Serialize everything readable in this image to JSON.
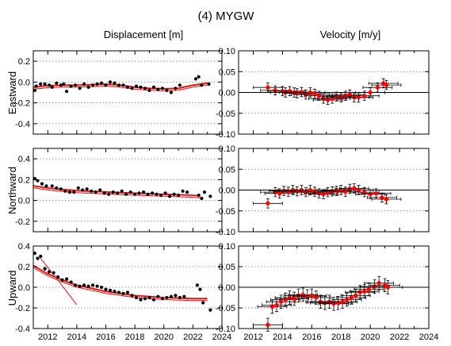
{
  "page_title": "(4) MYGW",
  "column_titles": {
    "displacement": "Displacement [m]",
    "velocity": "Velocity [m/y]"
  },
  "row_labels": {
    "east": "Eastward",
    "north": "Northward",
    "up": "Upward"
  },
  "colors": {
    "data_points": "#000000",
    "model": "#ff0000",
    "velocity_points": "#ff0000",
    "grid": "#777777"
  },
  "chart_data": [
    {
      "id": "disp-east",
      "type": "scatter",
      "title": "",
      "xlabel": "",
      "ylabel": "Eastward",
      "xlim": [
        2011,
        2024
      ],
      "ylim": [
        -0.5,
        0.3
      ],
      "xticks": [],
      "yticks": [
        0.2,
        0.0,
        -0.2,
        -0.4
      ],
      "grid_y": [
        0.2,
        0.0,
        -0.2,
        -0.4
      ],
      "points": [
        [
          2011.1,
          -0.08
        ],
        [
          2011.2,
          -0.04
        ],
        [
          2011.5,
          -0.02
        ],
        [
          2011.8,
          -0.02
        ],
        [
          2012.1,
          -0.03
        ],
        [
          2012.3,
          -0.05
        ],
        [
          2012.6,
          -0.01
        ],
        [
          2012.9,
          -0.03
        ],
        [
          2013.1,
          -0.02
        ],
        [
          2013.3,
          -0.09
        ],
        [
          2013.6,
          -0.04
        ],
        [
          2013.9,
          -0.03
        ],
        [
          2014.2,
          -0.06
        ],
        [
          2014.5,
          -0.02
        ],
        [
          2014.8,
          -0.05
        ],
        [
          2015.1,
          -0.03
        ],
        [
          2015.4,
          -0.02
        ],
        [
          2015.7,
          -0.01
        ],
        [
          2016.0,
          -0.03
        ],
        [
          2016.3,
          0.0
        ],
        [
          2016.6,
          -0.01
        ],
        [
          2016.9,
          -0.03
        ],
        [
          2017.2,
          -0.03
        ],
        [
          2017.5,
          -0.05
        ],
        [
          2017.8,
          -0.06
        ],
        [
          2018.1,
          -0.04
        ],
        [
          2018.4,
          -0.05
        ],
        [
          2018.7,
          -0.06
        ],
        [
          2019.0,
          -0.08
        ],
        [
          2019.3,
          -0.05
        ],
        [
          2019.6,
          -0.07
        ],
        [
          2019.9,
          -0.06
        ],
        [
          2020.2,
          -0.08
        ],
        [
          2020.5,
          -0.1
        ],
        [
          2020.8,
          -0.06
        ],
        [
          2021.1,
          -0.03
        ],
        [
          2022.2,
          0.03
        ],
        [
          2022.4,
          0.05
        ],
        [
          2022.6,
          -0.03
        ],
        [
          2023.1,
          -0.02
        ]
      ],
      "model": [
        [
          2011.0,
          -0.05
        ],
        [
          2012.0,
          -0.035
        ],
        [
          2013.0,
          -0.03
        ],
        [
          2014.0,
          -0.03
        ],
        [
          2015.0,
          -0.025
        ],
        [
          2016.0,
          -0.02
        ],
        [
          2017.0,
          -0.03
        ],
        [
          2018.0,
          -0.05
        ],
        [
          2019.0,
          -0.06
        ],
        [
          2020.0,
          -0.065
        ],
        [
          2021.0,
          -0.06
        ],
        [
          2022.0,
          -0.03
        ],
        [
          2023.0,
          -0.01
        ]
      ],
      "error_bars": false
    },
    {
      "id": "vel-east",
      "type": "scatter",
      "title": "",
      "xlabel": "",
      "ylabel": "",
      "xlim": [
        2011,
        2024
      ],
      "ylim": [
        -0.1,
        0.1
      ],
      "xticks": [],
      "yticks": [
        0.1,
        0.05,
        0.0,
        -0.05,
        -0.1
      ],
      "ytick_labels": [
        "0.10",
        "0.05",
        "0.00",
        "-0.05",
        "-0.10"
      ],
      "grid_y": [
        0.05,
        -0.05
      ],
      "zero_line": true,
      "points": [
        [
          2013.0,
          0.012
        ],
        [
          2013.5,
          0.005
        ],
        [
          2014.0,
          0.003
        ],
        [
          2014.2,
          0.0
        ],
        [
          2014.5,
          0.003
        ],
        [
          2014.8,
          0.0
        ],
        [
          2015.0,
          -0.002
        ],
        [
          2015.3,
          0.001
        ],
        [
          2015.6,
          -0.005
        ],
        [
          2015.9,
          0.0
        ],
        [
          2016.2,
          -0.003
        ],
        [
          2016.5,
          -0.008
        ],
        [
          2016.8,
          -0.015
        ],
        [
          2017.1,
          -0.018
        ],
        [
          2017.4,
          -0.015
        ],
        [
          2017.7,
          -0.01
        ],
        [
          2018.0,
          -0.012
        ],
        [
          2018.3,
          -0.008
        ],
        [
          2018.6,
          -0.005
        ],
        [
          2018.9,
          -0.012
        ],
        [
          2019.2,
          -0.012
        ],
        [
          2019.6,
          -0.008
        ],
        [
          2020.0,
          0.0
        ],
        [
          2020.5,
          0.012
        ],
        [
          2020.9,
          0.022
        ],
        [
          2021.1,
          0.018
        ]
      ],
      "error_bars": true,
      "xerr": 1.0,
      "yerr": 0.011
    },
    {
      "id": "disp-north",
      "type": "scatter",
      "title": "",
      "xlabel": "",
      "ylabel": "Northward",
      "xlim": [
        2011,
        2024
      ],
      "ylim": [
        -0.3,
        0.5
      ],
      "xticks": [],
      "yticks": [
        0.4,
        0.2,
        0.0,
        -0.2
      ],
      "grid_y": [
        0.4,
        0.2,
        0.0,
        -0.2
      ],
      "points": [
        [
          2011.1,
          0.21
        ],
        [
          2011.3,
          0.19
        ],
        [
          2011.6,
          0.16
        ],
        [
          2011.9,
          0.14
        ],
        [
          2012.3,
          0.14
        ],
        [
          2012.6,
          0.12
        ],
        [
          2012.9,
          0.11
        ],
        [
          2013.2,
          0.09
        ],
        [
          2013.5,
          0.08
        ],
        [
          2013.8,
          0.08
        ],
        [
          2014.1,
          0.12
        ],
        [
          2014.4,
          0.1
        ],
        [
          2014.7,
          0.11
        ],
        [
          2015.0,
          0.09
        ],
        [
          2015.3,
          0.08
        ],
        [
          2015.6,
          0.1
        ],
        [
          2015.9,
          0.07
        ],
        [
          2016.2,
          0.06
        ],
        [
          2016.5,
          0.08
        ],
        [
          2016.8,
          0.07
        ],
        [
          2017.1,
          0.09
        ],
        [
          2017.4,
          0.06
        ],
        [
          2017.7,
          0.08
        ],
        [
          2018.0,
          0.06
        ],
        [
          2018.3,
          0.07
        ],
        [
          2018.6,
          0.08
        ],
        [
          2018.9,
          0.06
        ],
        [
          2019.2,
          0.07
        ],
        [
          2019.5,
          0.06
        ],
        [
          2019.8,
          0.05
        ],
        [
          2020.1,
          0.07
        ],
        [
          2020.4,
          0.04
        ],
        [
          2020.7,
          0.06
        ],
        [
          2021.0,
          0.05
        ],
        [
          2021.3,
          0.09
        ],
        [
          2021.6,
          0.08
        ],
        [
          2022.4,
          0.05
        ],
        [
          2022.6,
          0.02
        ],
        [
          2022.8,
          0.08
        ],
        [
          2023.2,
          0.04
        ]
      ],
      "model": [
        [
          2011.0,
          0.14
        ],
        [
          2012.0,
          0.12
        ],
        [
          2013.0,
          0.105
        ],
        [
          2014.0,
          0.095
        ],
        [
          2015.0,
          0.088
        ],
        [
          2016.0,
          0.082
        ],
        [
          2017.0,
          0.076
        ],
        [
          2018.0,
          0.07
        ],
        [
          2019.0,
          0.065
        ],
        [
          2020.0,
          0.06
        ],
        [
          2021.0,
          0.055
        ],
        [
          2022.0,
          0.05
        ],
        [
          2022.5,
          0.045
        ]
      ],
      "error_bars": false
    },
    {
      "id": "vel-north",
      "type": "scatter",
      "title": "",
      "xlabel": "",
      "ylabel": "",
      "xlim": [
        2011,
        2024
      ],
      "ylim": [
        -0.1,
        0.1
      ],
      "xticks": [],
      "yticks": [
        0.1,
        0.05,
        0.0,
        -0.05,
        -0.1
      ],
      "ytick_labels": [
        "0.10",
        "0.05",
        "0.00",
        "-0.05",
        "-0.10"
      ],
      "grid_y": [
        0.05,
        -0.05
      ],
      "zero_line": true,
      "points": [
        [
          2013.0,
          -0.032
        ],
        [
          2013.5,
          -0.005
        ],
        [
          2013.8,
          -0.008
        ],
        [
          2014.1,
          -0.002
        ],
        [
          2014.4,
          -0.004
        ],
        [
          2014.7,
          0.0
        ],
        [
          2015.0,
          -0.003
        ],
        [
          2015.3,
          0.0
        ],
        [
          2015.6,
          -0.005
        ],
        [
          2015.9,
          0.0
        ],
        [
          2016.2,
          -0.004
        ],
        [
          2016.5,
          -0.008
        ],
        [
          2016.8,
          -0.01
        ],
        [
          2017.1,
          -0.005
        ],
        [
          2017.4,
          -0.003
        ],
        [
          2017.7,
          -0.002
        ],
        [
          2018.0,
          0.0
        ],
        [
          2018.3,
          -0.004
        ],
        [
          2018.6,
          0.003
        ],
        [
          2018.9,
          0.004
        ],
        [
          2019.2,
          0.0
        ],
        [
          2019.6,
          -0.005
        ],
        [
          2020.0,
          -0.01
        ],
        [
          2020.4,
          -0.008
        ],
        [
          2020.8,
          -0.018
        ],
        [
          2021.1,
          -0.022
        ]
      ],
      "error_bars": true,
      "xerr": 1.0,
      "yerr": 0.011
    },
    {
      "id": "disp-up",
      "type": "scatter",
      "title": "",
      "xlabel": "",
      "ylabel": "Upward",
      "xlim": [
        2011,
        2024
      ],
      "ylim": [
        -0.4,
        0.4
      ],
      "xticks": [
        2012,
        2014,
        2016,
        2018,
        2020,
        2022,
        2024
      ],
      "yticks": [
        0.4,
        0.2,
        0.0,
        -0.2,
        -0.4
      ],
      "grid_y": [
        0.2,
        0.0,
        -0.2
      ],
      "points": [
        [
          2011.1,
          0.33
        ],
        [
          2011.3,
          0.28
        ],
        [
          2011.5,
          0.3
        ],
        [
          2011.8,
          0.18
        ],
        [
          2012.1,
          0.15
        ],
        [
          2012.4,
          0.14
        ],
        [
          2012.7,
          0.1
        ],
        [
          2013.0,
          0.07
        ],
        [
          2013.3,
          0.08
        ],
        [
          2013.6,
          0.05
        ],
        [
          2013.9,
          0.02
        ],
        [
          2014.2,
          0.01
        ],
        [
          2014.5,
          0.02
        ],
        [
          2014.8,
          0.01
        ],
        [
          2015.1,
          0.02
        ],
        [
          2015.4,
          0.01
        ],
        [
          2015.7,
          0.0
        ],
        [
          2016.0,
          -0.02
        ],
        [
          2016.3,
          -0.03
        ],
        [
          2016.6,
          -0.04
        ],
        [
          2016.9,
          -0.05
        ],
        [
          2017.2,
          -0.06
        ],
        [
          2017.5,
          -0.05
        ],
        [
          2017.8,
          -0.08
        ],
        [
          2018.1,
          -0.1
        ],
        [
          2018.4,
          -0.12
        ],
        [
          2018.7,
          -0.11
        ],
        [
          2019.0,
          -0.1
        ],
        [
          2019.3,
          -0.12
        ],
        [
          2019.6,
          -0.09
        ],
        [
          2019.9,
          -0.11
        ],
        [
          2020.2,
          -0.1
        ],
        [
          2020.5,
          -0.09
        ],
        [
          2020.8,
          -0.08
        ],
        [
          2021.1,
          -0.1
        ],
        [
          2021.4,
          -0.09
        ],
        [
          2022.3,
          0.02
        ],
        [
          2022.5,
          -0.02
        ],
        [
          2022.7,
          -0.15
        ],
        [
          2023.2,
          -0.22
        ]
      ],
      "model": [
        [
          2011.0,
          0.21
        ],
        [
          2012.0,
          0.13
        ],
        [
          2013.0,
          0.07
        ],
        [
          2014.0,
          0.02
        ],
        [
          2015.0,
          -0.01
        ],
        [
          2016.0,
          -0.04
        ],
        [
          2017.0,
          -0.06
        ],
        [
          2018.0,
          -0.08
        ],
        [
          2019.0,
          -0.09
        ],
        [
          2020.0,
          -0.1
        ],
        [
          2021.0,
          -0.105
        ],
        [
          2022.0,
          -0.11
        ],
        [
          2023.0,
          -0.11
        ]
      ],
      "model_extra": [
        [
          2011.5,
          0.28
        ],
        [
          2012.8,
          0.05
        ],
        [
          2014.0,
          -0.17
        ]
      ],
      "error_bars": false
    },
    {
      "id": "vel-up",
      "type": "scatter",
      "title": "",
      "xlabel": "",
      "ylabel": "",
      "xlim": [
        2011,
        2024
      ],
      "ylim": [
        -0.1,
        0.1
      ],
      "xticks": [
        2012,
        2014,
        2016,
        2018,
        2020,
        2022,
        2024
      ],
      "yticks": [
        0.1,
        0.05,
        0.0,
        -0.05,
        -0.1
      ],
      "ytick_labels": [
        "0.10",
        "0.05",
        "0.00",
        "-0.05",
        "-0.10"
      ],
      "grid_y": [
        0.05,
        -0.05
      ],
      "zero_line": true,
      "points": [
        [
          2013.0,
          -0.091
        ],
        [
          2013.3,
          -0.047
        ],
        [
          2013.6,
          -0.043
        ],
        [
          2013.9,
          -0.035
        ],
        [
          2014.2,
          -0.03
        ],
        [
          2014.5,
          -0.025
        ],
        [
          2014.8,
          -0.028
        ],
        [
          2015.1,
          -0.02
        ],
        [
          2015.4,
          -0.018
        ],
        [
          2015.7,
          -0.022
        ],
        [
          2016.0,
          -0.02
        ],
        [
          2016.3,
          -0.025
        ],
        [
          2016.6,
          -0.035
        ],
        [
          2016.9,
          -0.038
        ],
        [
          2017.2,
          -0.035
        ],
        [
          2017.5,
          -0.04
        ],
        [
          2017.8,
          -0.038
        ],
        [
          2018.1,
          -0.035
        ],
        [
          2018.4,
          -0.03
        ],
        [
          2018.7,
          -0.025
        ],
        [
          2019.0,
          -0.02
        ],
        [
          2019.3,
          -0.012
        ],
        [
          2019.6,
          -0.01
        ],
        [
          2019.9,
          -0.005
        ],
        [
          2020.3,
          0.002
        ],
        [
          2020.6,
          0.01
        ],
        [
          2021.0,
          0.005
        ],
        [
          2021.2,
          0.0
        ]
      ],
      "error_bars": true,
      "xerr": 1.0,
      "yerr": 0.016
    }
  ]
}
